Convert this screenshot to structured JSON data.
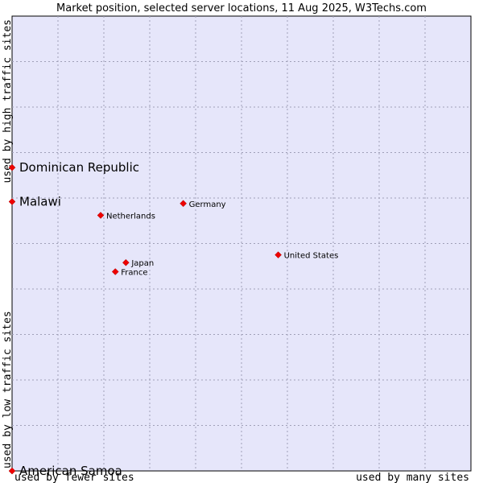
{
  "chart_data": {
    "type": "scatter",
    "title": "Market position, selected server locations, 11 Aug 2025, W3Techs.com",
    "xlabel_left": "used by fewer sites",
    "xlabel_right": "used by many sites",
    "ylabel_bottom": "used by low traffic sites",
    "ylabel_top": "used by high traffic sites",
    "xlim": [
      0,
      1
    ],
    "ylim": [
      0,
      1
    ],
    "grid": true,
    "colors": {
      "plot_background": "#e6e6fa",
      "grid": "#a0a0b8",
      "marker": "#ee0000"
    },
    "points": [
      {
        "label": "Dominican Republic",
        "x": 0.0,
        "y": 0.667,
        "highlight": true
      },
      {
        "label": "Malawi",
        "x": 0.0,
        "y": 0.592,
        "highlight": true
      },
      {
        "label": "American Samoa",
        "x": 0.0,
        "y": 0.0,
        "highlight": true
      },
      {
        "label": "Germany",
        "x": 0.373,
        "y": 0.588,
        "highlight": false
      },
      {
        "label": "Netherlands",
        "x": 0.193,
        "y": 0.562,
        "highlight": false
      },
      {
        "label": "United States",
        "x": 0.58,
        "y": 0.475,
        "highlight": false
      },
      {
        "label": "Japan",
        "x": 0.248,
        "y": 0.458,
        "highlight": false
      },
      {
        "label": "France",
        "x": 0.225,
        "y": 0.438,
        "highlight": false
      }
    ]
  }
}
